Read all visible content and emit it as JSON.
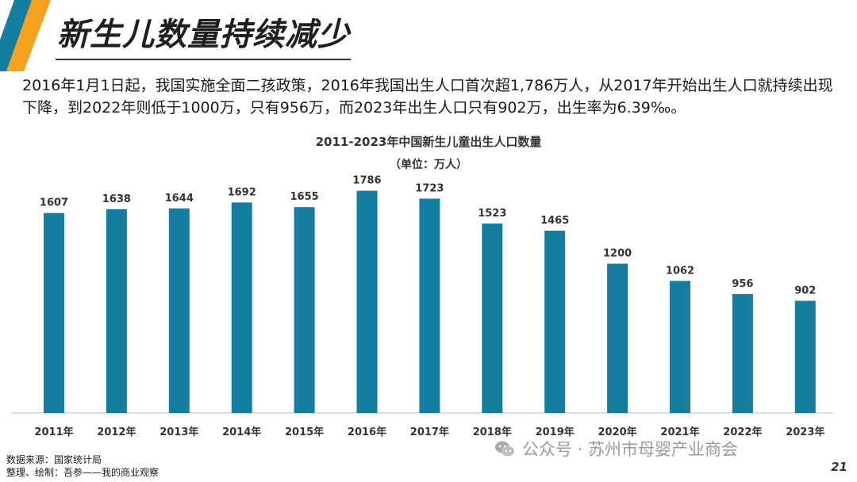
{
  "slide": {
    "title": "新生儿数量持续减少",
    "intro": "2016年1月1日起，我国实施全面二孩政策，2016年我国出生人口首次超1,786万人，从2017年开始出生人口就持续出现下降，到2022年则低于1000万，只有956万，而2023年出生人口只有902万，出生率为6.39‰。",
    "source_line1": "数据来源：国家统计局",
    "source_line2": "整理、绘制：吾参——我的商业观察",
    "watermark": "公众号 · 苏州市母婴产业商会",
    "page_number": "21"
  },
  "colors": {
    "bar": "#137EA0",
    "deco_orange": "#F6A21E",
    "deco_blue": "#137EA0"
  },
  "chart_data": {
    "type": "bar",
    "title": "2011-2023年中国新生儿童出生人口数量",
    "subtitle": "（单位：万人）",
    "xlabel": "",
    "ylabel": "",
    "categories": [
      "2011年",
      "2012年",
      "2013年",
      "2014年",
      "2015年",
      "2016年",
      "2017年",
      "2018年",
      "2019年",
      "2020年",
      "2021年",
      "2022年",
      "2023年"
    ],
    "values": [
      1607,
      1638,
      1644,
      1692,
      1655,
      1786,
      1723,
      1523,
      1465,
      1200,
      1062,
      956,
      902
    ],
    "ylim": [
      0,
      2000
    ],
    "grid": false,
    "legend": "none"
  }
}
